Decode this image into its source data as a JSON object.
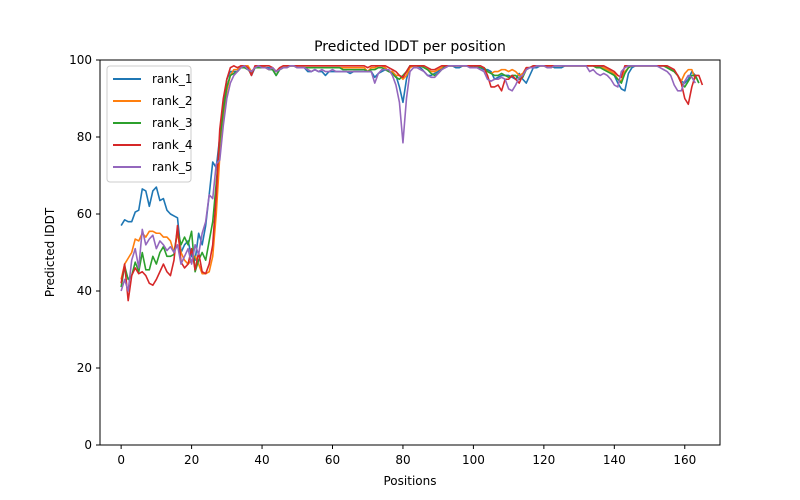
{
  "chart_data": {
    "type": "line",
    "title": "Predicted lDDT per position",
    "xlabel": "Positions",
    "ylabel": "Predicted lDDT",
    "xlim": [
      -6,
      170
    ],
    "ylim": [
      0,
      100
    ],
    "xticks": [
      0,
      20,
      40,
      60,
      80,
      100,
      120,
      140,
      160
    ],
    "yticks": [
      0,
      20,
      40,
      60,
      80,
      100
    ],
    "grid": false,
    "legend_position": "top-left",
    "x_start": 0,
    "series": [
      {
        "name": "rank_1",
        "color": "#1f77b4",
        "values": [
          57,
          58.5,
          58,
          58,
          60.5,
          61,
          66.5,
          66,
          62,
          66,
          67,
          63.5,
          64,
          61,
          60,
          59.5,
          59,
          50,
          52,
          53,
          49,
          48,
          55,
          52,
          57,
          65,
          73.5,
          72,
          80,
          88,
          95,
          97,
          97,
          97,
          98.5,
          98.5,
          98,
          96,
          98,
          98.5,
          98,
          98,
          98,
          97.5,
          96,
          97.5,
          98,
          98,
          98.5,
          98.5,
          98,
          98,
          98,
          97,
          97,
          97.5,
          97,
          97,
          96,
          97,
          97,
          97,
          97,
          97,
          97,
          96.5,
          97,
          97,
          97,
          97,
          97,
          97,
          95.5,
          96.5,
          97,
          97.5,
          97,
          97,
          96,
          93,
          89,
          95,
          98.5,
          98.5,
          98.5,
          98,
          97,
          96,
          96,
          96.5,
          97,
          98,
          98,
          98.5,
          98.5,
          98,
          98,
          98.5,
          98.5,
          98.5,
          98,
          98.5,
          98,
          97.5,
          97.5,
          97,
          95,
          95.5,
          96,
          96,
          96,
          95.5,
          95,
          96.5,
          95,
          94,
          96,
          98,
          98,
          98.5,
          98.5,
          98.5,
          98.5,
          98,
          98,
          98,
          98.5,
          98.5,
          98.5,
          98.5,
          98.5,
          98.5,
          98.5,
          98.5,
          98.5,
          98,
          98.5,
          98,
          97.5,
          97,
          96,
          94,
          92.5,
          92,
          96.5,
          98,
          98.5,
          98.5,
          98.5,
          98.5,
          98.5,
          98.5,
          98.5,
          98.5,
          98.5,
          98,
          97.5,
          97,
          96,
          94.5,
          94,
          95,
          97,
          96,
          94
        ]
      },
      {
        "name": "rank_2",
        "color": "#ff7f0e",
        "values": [
          43,
          47,
          48.5,
          50,
          53.5,
          53,
          55,
          54,
          55.5,
          55.5,
          55,
          55,
          54,
          54,
          53,
          50,
          55,
          50,
          48,
          47,
          48,
          49,
          47,
          44.5,
          44.5,
          45,
          49,
          60,
          75,
          85,
          92,
          96,
          97.5,
          97.5,
          98.5,
          98.5,
          98.5,
          97,
          98,
          98.5,
          98.5,
          98,
          97.5,
          98,
          97,
          97.5,
          98,
          98,
          98.5,
          98.5,
          98,
          98,
          98,
          98,
          98,
          98,
          98,
          98,
          98,
          98,
          98,
          98,
          98,
          98,
          98,
          98,
          98,
          98,
          98,
          98,
          97,
          98,
          98,
          98.5,
          98.5,
          98,
          97,
          97,
          96,
          96,
          95,
          96,
          98,
          98.5,
          98.5,
          98.5,
          98,
          97.5,
          97,
          97,
          97.5,
          98,
          98.5,
          98.5,
          98.5,
          98.5,
          98.5,
          98.5,
          98.5,
          98.5,
          98.5,
          98,
          98,
          98,
          97,
          96.5,
          97,
          97,
          97.5,
          97.5,
          97,
          97.5,
          97,
          96,
          96.5,
          98,
          98,
          98.5,
          98.5,
          98.5,
          98.5,
          98,
          98,
          98.5,
          98.5,
          98.5,
          98.5,
          98.5,
          98.5,
          98.5,
          98.5,
          98.5,
          98.5,
          98.5,
          98.5,
          98,
          98,
          98,
          97.5,
          97,
          96.5,
          95,
          94.5,
          97,
          98,
          98.5,
          98.5,
          98.5,
          98.5,
          98.5,
          98.5,
          98.5,
          98.5,
          98.5,
          98.5,
          98,
          97.5,
          97,
          96,
          94.5,
          96.5,
          97.5,
          97.5,
          95
        ]
      },
      {
        "name": "rank_3",
        "color": "#2ca02c",
        "values": [
          41,
          46.5,
          43,
          44,
          47.5,
          45,
          50,
          45.5,
          45.5,
          49,
          47,
          50,
          51.5,
          49,
          49,
          49.5,
          56,
          52,
          54,
          52,
          55.5,
          45,
          48,
          50,
          48,
          53,
          58,
          68,
          79,
          87,
          93,
          96,
          96.5,
          97,
          98,
          98,
          97.5,
          96.5,
          98,
          98,
          98,
          98,
          97.5,
          97.5,
          96,
          97.5,
          98,
          98,
          98.5,
          98.5,
          98,
          98,
          98,
          98,
          98,
          98,
          98,
          98,
          98,
          98,
          98,
          98,
          98,
          97.5,
          97.5,
          97.5,
          97.5,
          97.5,
          97.5,
          97.5,
          97,
          97.5,
          97.5,
          98,
          98,
          97.5,
          97,
          96.5,
          95.5,
          95,
          96,
          97,
          98.5,
          98.5,
          98.5,
          98.5,
          98,
          97.5,
          96.5,
          96,
          96.5,
          97.5,
          98.5,
          98.5,
          98.5,
          98.5,
          98.5,
          98.5,
          98.5,
          98.5,
          98.5,
          98,
          98,
          98,
          97,
          96.5,
          96,
          96,
          96.5,
          96,
          95.5,
          96,
          96,
          95,
          95.5,
          97.5,
          98,
          98.5,
          98.5,
          98.5,
          98.5,
          98,
          98,
          98.5,
          98.5,
          98.5,
          98.5,
          98.5,
          98.5,
          98.5,
          98.5,
          98.5,
          98.5,
          98.5,
          98.5,
          98,
          98,
          97.5,
          97,
          96.5,
          96,
          95,
          94,
          96.5,
          98,
          98.5,
          98.5,
          98.5,
          98.5,
          98.5,
          98.5,
          98.5,
          98.5,
          98.5,
          98.5,
          98,
          97.5,
          97,
          96,
          94,
          93,
          94.5,
          96,
          96,
          94
        ]
      },
      {
        "name": "rank_4",
        "color": "#d62728",
        "values": [
          42,
          47,
          37.5,
          44,
          46,
          44.5,
          45,
          44,
          42,
          41.5,
          43,
          45,
          47,
          45,
          44,
          48,
          57,
          47.5,
          46,
          47,
          51,
          45.5,
          50,
          45,
          44.5,
          47,
          52,
          65,
          82,
          90,
          95,
          98,
          98.5,
          98,
          98.5,
          98.5,
          98,
          96,
          98.5,
          98.5,
          98.5,
          98.5,
          98.5,
          98,
          97,
          98,
          98.5,
          98.5,
          98.5,
          98.5,
          98.5,
          98.5,
          98.5,
          98.5,
          98.5,
          98.5,
          98.5,
          98.5,
          98.5,
          98.5,
          98.5,
          98.5,
          98.5,
          98.5,
          98.5,
          98.5,
          98.5,
          98.5,
          98.5,
          98.5,
          98,
          98.5,
          98.5,
          98.5,
          98.5,
          98.5,
          98,
          97.5,
          97,
          96,
          95.5,
          97,
          98.5,
          98.5,
          98.5,
          98.5,
          98.5,
          98,
          97.5,
          97.5,
          98,
          98.5,
          98.5,
          98.5,
          98.5,
          98.5,
          98.5,
          98.5,
          98.5,
          98.5,
          98.5,
          98.5,
          98.5,
          98,
          96,
          93,
          93,
          93.5,
          92,
          95,
          95,
          96,
          95,
          94,
          96,
          98,
          98,
          98.5,
          98.5,
          98.5,
          98.5,
          98.5,
          98.5,
          98.5,
          98.5,
          98.5,
          98.5,
          98.5,
          98.5,
          98.5,
          98.5,
          98.5,
          98.5,
          98.5,
          98.5,
          98.5,
          98.5,
          98.5,
          98,
          97.5,
          97,
          96,
          95.5,
          98.5,
          98.5,
          98.5,
          98.5,
          98.5,
          98.5,
          98.5,
          98.5,
          98.5,
          98.5,
          98.5,
          98.5,
          98.5,
          98,
          97.5,
          96,
          94,
          90,
          88.5,
          93,
          96,
          96,
          93.5
        ]
      },
      {
        "name": "rank_5",
        "color": "#9467bd",
        "values": [
          40,
          43,
          40,
          48,
          51,
          46,
          56,
          52,
          53.5,
          54.5,
          51,
          53,
          52,
          50.5,
          51.5,
          50,
          52,
          47,
          49,
          51,
          47,
          52,
          49.5,
          55,
          58,
          65,
          64,
          73,
          74,
          83,
          90,
          94,
          96,
          97,
          98,
          98.5,
          97.5,
          97,
          98,
          98.5,
          98,
          98,
          97.5,
          98,
          97,
          97.5,
          98,
          98,
          98.5,
          98.5,
          98,
          98,
          98,
          97.5,
          97,
          97.5,
          97,
          97.5,
          97,
          97,
          97.5,
          97,
          97,
          97,
          97,
          97,
          97,
          97,
          97,
          97,
          97,
          97,
          94,
          96.5,
          97.5,
          97.5,
          97.5,
          96,
          93.5,
          89,
          78.5,
          90,
          97,
          98,
          98,
          97.5,
          97,
          96,
          95.5,
          95.5,
          96.5,
          97.5,
          98,
          98.5,
          98.5,
          98.5,
          98.5,
          98.5,
          98.5,
          98,
          98,
          98,
          97.5,
          97,
          95,
          94.5,
          95,
          95,
          95.5,
          95,
          92.5,
          92,
          93.5,
          95.5,
          96,
          97.5,
          98,
          98,
          98.5,
          98.5,
          98.5,
          98,
          98,
          98.5,
          98.5,
          98.5,
          98.5,
          98.5,
          98.5,
          98.5,
          98.5,
          98.5,
          98.5,
          97,
          97.5,
          96.5,
          96,
          96.5,
          96,
          95,
          93.5,
          93,
          97,
          98,
          98.5,
          98.5,
          98.5,
          98.5,
          98.5,
          98.5,
          98.5,
          98.5,
          98.5,
          98,
          97.5,
          97,
          96,
          93.5,
          92,
          92,
          94.5,
          96,
          95.5,
          94
        ]
      }
    ]
  }
}
